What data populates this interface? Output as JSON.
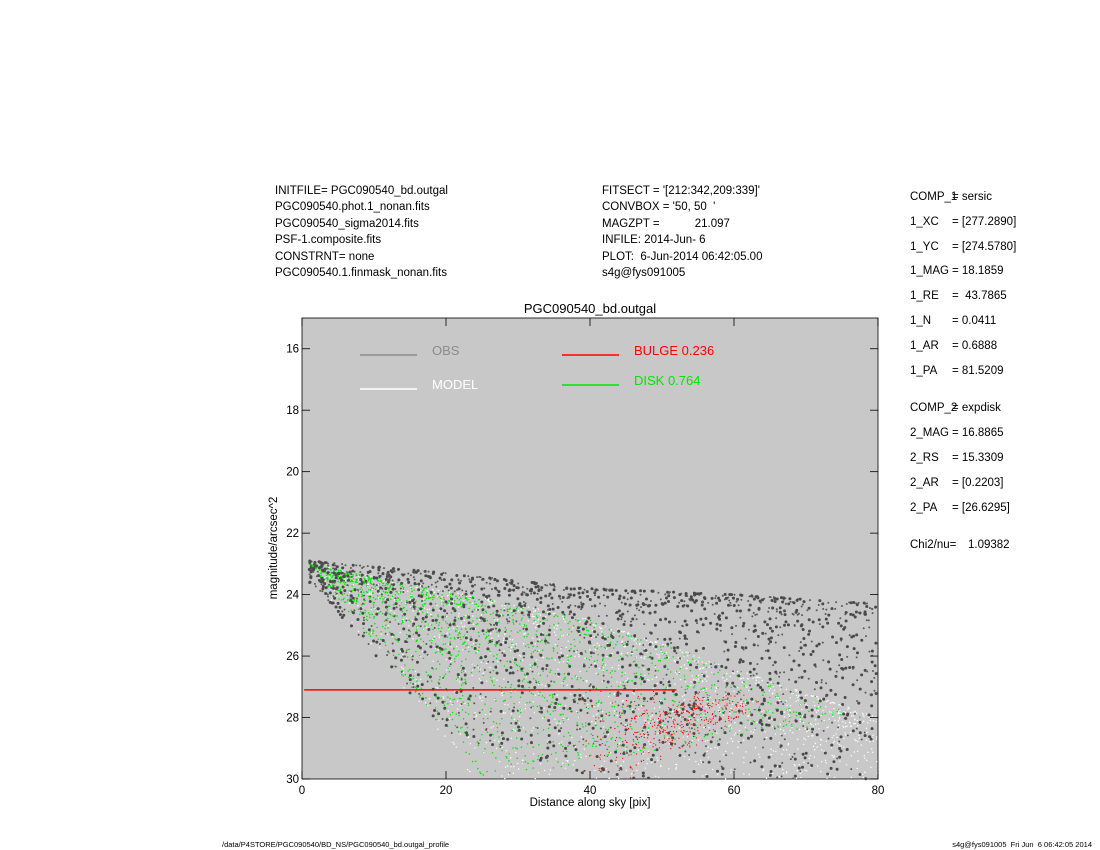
{
  "header_left": [
    "INITFILE= PGC090540_bd.outgal",
    "PGC090540.phot.1_nonan.fits",
    "PGC090540_sigma2014.fits",
    "PSF-1.composite.fits",
    "CONSTRNT= none",
    "PGC090540.1.finmask_nonan.fits"
  ],
  "header_mid": [
    "FITSECT = '[212:342,209:339]'",
    "CONVBOX = '50, 50  '",
    "MAGZPT =           21.097",
    "INFILE: 2014-Jun- 6",
    "PLOT:  6-Jun-2014 06:42:05.00",
    "s4g@fys091005"
  ],
  "params": {
    "comp1": [
      {
        "key": "COMP_1",
        "val": "= sersic"
      },
      {
        "key": "1_XC",
        "val": "= [277.2890]"
      },
      {
        "key": "1_YC",
        "val": "= [274.5780]"
      },
      {
        "key": "1_MAG",
        "val": "= 18.1859"
      },
      {
        "key": "1_RE",
        "val": "=  43.7865"
      },
      {
        "key": "1_N",
        "val": "= 0.0411"
      },
      {
        "key": "1_AR",
        "val": "= 0.6888"
      },
      {
        "key": "1_PA",
        "val": "= 81.5209"
      }
    ],
    "comp2": [
      {
        "key": "COMP_2",
        "val": "= expdisk"
      },
      {
        "key": "2_MAG",
        "val": "= 16.8865"
      },
      {
        "key": "2_RS",
        "val": "= 15.3309"
      },
      {
        "key": "2_AR",
        "val": "= [0.2203]"
      },
      {
        "key": "2_PA",
        "val": "= [26.6295]"
      }
    ],
    "chi": {
      "key": "Chi2/nu=",
      "val": "1.09382"
    }
  },
  "footer": {
    "left": "/data/P4STORE/PGC090540/BD_NS/PGC090540_bd.outgal_profile",
    "right": "s4g@fys091005  Fri Jun  6 06:42:05 2014"
  },
  "chart_data": {
    "type": "scatter",
    "title": "PGC090540_bd.outgal",
    "xlabel": "Distance along sky [pix]",
    "ylabel": "magnitude/arcsec^2",
    "xlim": [
      0,
      80
    ],
    "ylim": [
      30,
      15
    ],
    "y_inverted": true,
    "xticks": [
      0,
      20,
      40,
      60,
      80
    ],
    "yticks": [
      16,
      18,
      20,
      22,
      24,
      26,
      28,
      30
    ],
    "background": "#c8c8c8",
    "legend": [
      {
        "name": "OBS",
        "color": "#8c8c8c"
      },
      {
        "name": "MODEL",
        "color": "#ffffff"
      },
      {
        "name": "BULGE  0.236",
        "color": "#ff0000"
      },
      {
        "name": "DISK  0.764",
        "color": "#00e600"
      }
    ],
    "series": [
      {
        "name": "OBS",
        "color": "#4a4a4a",
        "trend": [
          {
            "x": 1,
            "y_min": 22.9,
            "y_max": 23.6
          },
          {
            "x": 20,
            "y_min": 23.3,
            "y_max": 28.5
          },
          {
            "x": 40,
            "y_min": 23.8,
            "y_max": 30
          },
          {
            "x": 60,
            "y_min": 24.0,
            "y_max": 30
          },
          {
            "x": 80,
            "y_min": 24.3,
            "y_max": 30
          }
        ]
      },
      {
        "name": "MODEL",
        "color": "#ffffff",
        "upper_envelope": [
          {
            "x": 1,
            "y": 23.0
          },
          {
            "x": 40,
            "y": 24.8
          },
          {
            "x": 80,
            "y": 28.0
          }
        ]
      },
      {
        "name": "BULGE  0.236",
        "color": "#ff0000",
        "y_flat": 27.1,
        "x_flat_end": 52,
        "falloff_range": [
          38,
          55
        ]
      },
      {
        "name": "DISK  0.764",
        "color": "#00e600",
        "major_axis": [
          {
            "x": 1,
            "y": 23.0
          },
          {
            "x": 40,
            "y": 24.8
          },
          {
            "x": 80,
            "y": 28.0
          }
        ],
        "minor_axis": [
          {
            "x": 1,
            "y": 23.0
          },
          {
            "x": 15,
            "y": 27.0
          },
          {
            "x": 25,
            "y": 30.0
          }
        ]
      }
    ]
  }
}
